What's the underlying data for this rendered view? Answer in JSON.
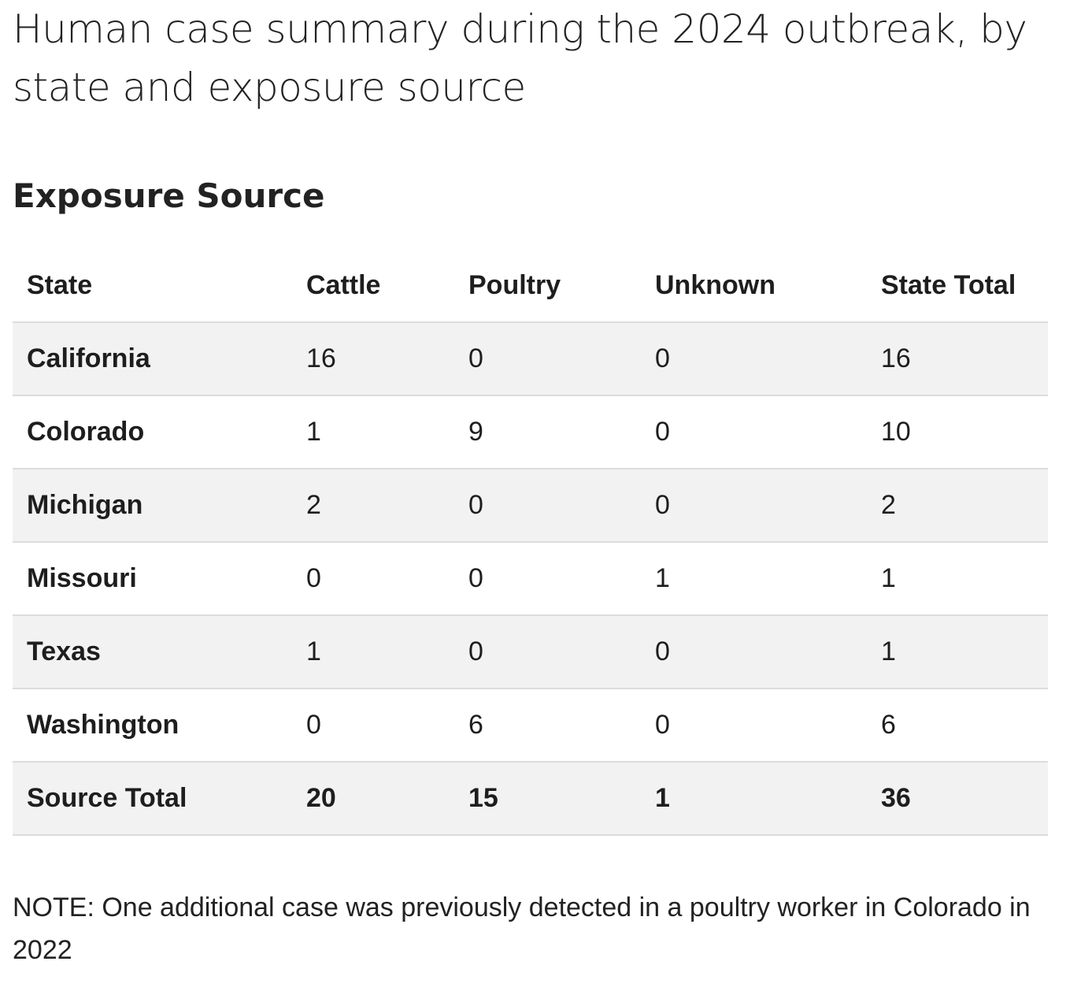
{
  "title": "Human case summary during the 2024 outbreak, by state and exposure source",
  "subtitle": "Exposure Source",
  "table": {
    "headers": [
      "State",
      "Cattle",
      "Poultry",
      "Unknown",
      "State Total"
    ],
    "rows": [
      [
        "California",
        "16",
        "0",
        "0",
        "16"
      ],
      [
        "Colorado",
        "1",
        "9",
        "0",
        "10"
      ],
      [
        "Michigan",
        "2",
        "0",
        "0",
        "2"
      ],
      [
        "Missouri",
        "0",
        "0",
        "1",
        "1"
      ],
      [
        "Texas",
        "1",
        "0",
        "0",
        "1"
      ],
      [
        "Washington",
        "0",
        "6",
        "0",
        "6"
      ]
    ],
    "total": [
      "Source Total",
      "20",
      "15",
      "1",
      "36"
    ]
  },
  "note": "NOTE: One additional case was previously detected in a poultry worker in Colorado in 2022"
}
